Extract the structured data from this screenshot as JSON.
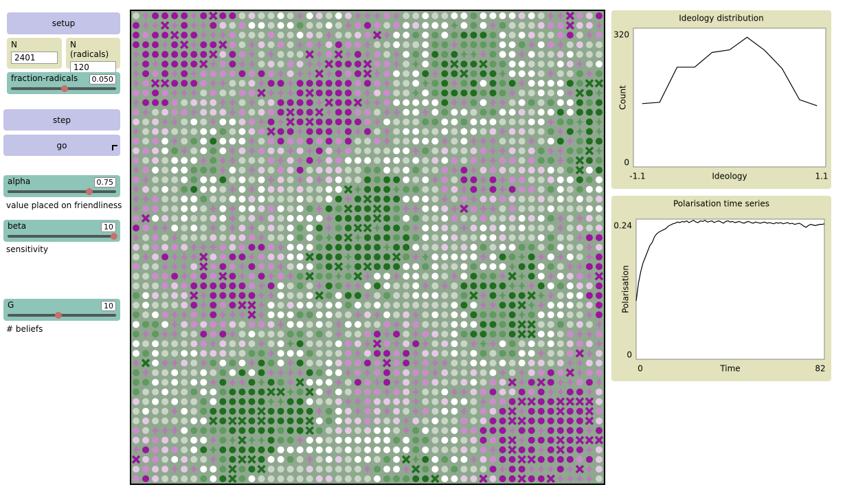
{
  "controls": {
    "buttons": [
      "setup",
      "step",
      "go"
    ],
    "inputs": [
      {
        "label": "N",
        "value": 2401
      },
      {
        "label": "N (radicals)",
        "value": 120
      }
    ],
    "sliders": [
      {
        "label": "fraction-radicals",
        "value": 0.05,
        "value_label": "0.050"
      },
      {
        "label": "alpha",
        "value": 0.75
      },
      {
        "label": "beta",
        "value": 10
      },
      {
        "label": "G",
        "value": 10
      }
    ],
    "notes": [
      "value placed on friendliness",
      "sensitivity",
      "# beliefs"
    ]
  },
  "plots": [
    {
      "type": "line",
      "title": "Ideology distribution",
      "x_label": "Ideology",
      "y_label": "Count",
      "x": [
        -1.0,
        -0.8,
        -0.6,
        -0.4,
        -0.2,
        0.0,
        0.2,
        0.4,
        0.6,
        0.8,
        1.0
      ],
      "values": [
        146,
        149,
        230,
        230,
        264,
        270,
        299,
        269,
        227,
        155,
        141
      ],
      "xlim": [
        -1.1,
        1.1
      ],
      "ylim": [
        0,
        320
      ],
      "xticks": [
        -1.1,
        1.1
      ],
      "yticks": [
        0,
        320
      ],
      "color": "#000000"
    },
    {
      "type": "line",
      "title": "Polarisation time series",
      "x_label": "Time",
      "y_label": "Polarisation",
      "x": [
        0,
        1,
        2,
        3,
        4,
        5,
        6,
        7,
        8,
        9,
        10,
        11,
        12,
        13,
        14,
        15,
        16,
        17,
        18,
        19,
        20,
        21,
        22,
        23,
        24,
        25,
        26,
        27,
        28,
        29,
        30,
        31,
        32,
        33,
        34,
        35,
        36,
        37,
        38,
        39,
        40,
        41,
        42,
        43,
        44,
        45,
        46,
        47,
        48,
        49,
        50,
        51,
        52,
        53,
        54,
        55,
        56,
        57,
        58,
        59,
        60,
        61,
        62,
        63,
        64,
        65,
        66,
        67,
        68,
        69,
        70,
        71,
        72,
        73,
        74,
        75,
        76,
        77,
        78,
        79,
        80,
        81,
        82
      ],
      "values": [
        0.1,
        0.13,
        0.15,
        0.165,
        0.175,
        0.185,
        0.195,
        0.2,
        0.21,
        0.215,
        0.218,
        0.22,
        0.222,
        0.224,
        0.228,
        0.23,
        0.232,
        0.233,
        0.235,
        0.234,
        0.236,
        0.235,
        0.237,
        0.234,
        0.236,
        0.238,
        0.235,
        0.234,
        0.237,
        0.236,
        0.238,
        0.235,
        0.236,
        0.237,
        0.234,
        0.236,
        0.237,
        0.235,
        0.233,
        0.236,
        0.237,
        0.235,
        0.236,
        0.234,
        0.235,
        0.236,
        0.234,
        0.233,
        0.235,
        0.236,
        0.234,
        0.233,
        0.235,
        0.234,
        0.233,
        0.234,
        0.235,
        0.233,
        0.234,
        0.233,
        0.232,
        0.234,
        0.233,
        0.234,
        0.232,
        0.233,
        0.234,
        0.232,
        0.233,
        0.231,
        0.232,
        0.233,
        0.231,
        0.228,
        0.226,
        0.229,
        0.231,
        0.23,
        0.229,
        0.23,
        0.231,
        0.231,
        0.232
      ],
      "xlim": [
        0,
        82
      ],
      "ylim": [
        0,
        0.24
      ],
      "xticks": [
        0,
        82
      ],
      "yticks": [
        0,
        0.24
      ],
      "color": "#000000"
    }
  ]
}
